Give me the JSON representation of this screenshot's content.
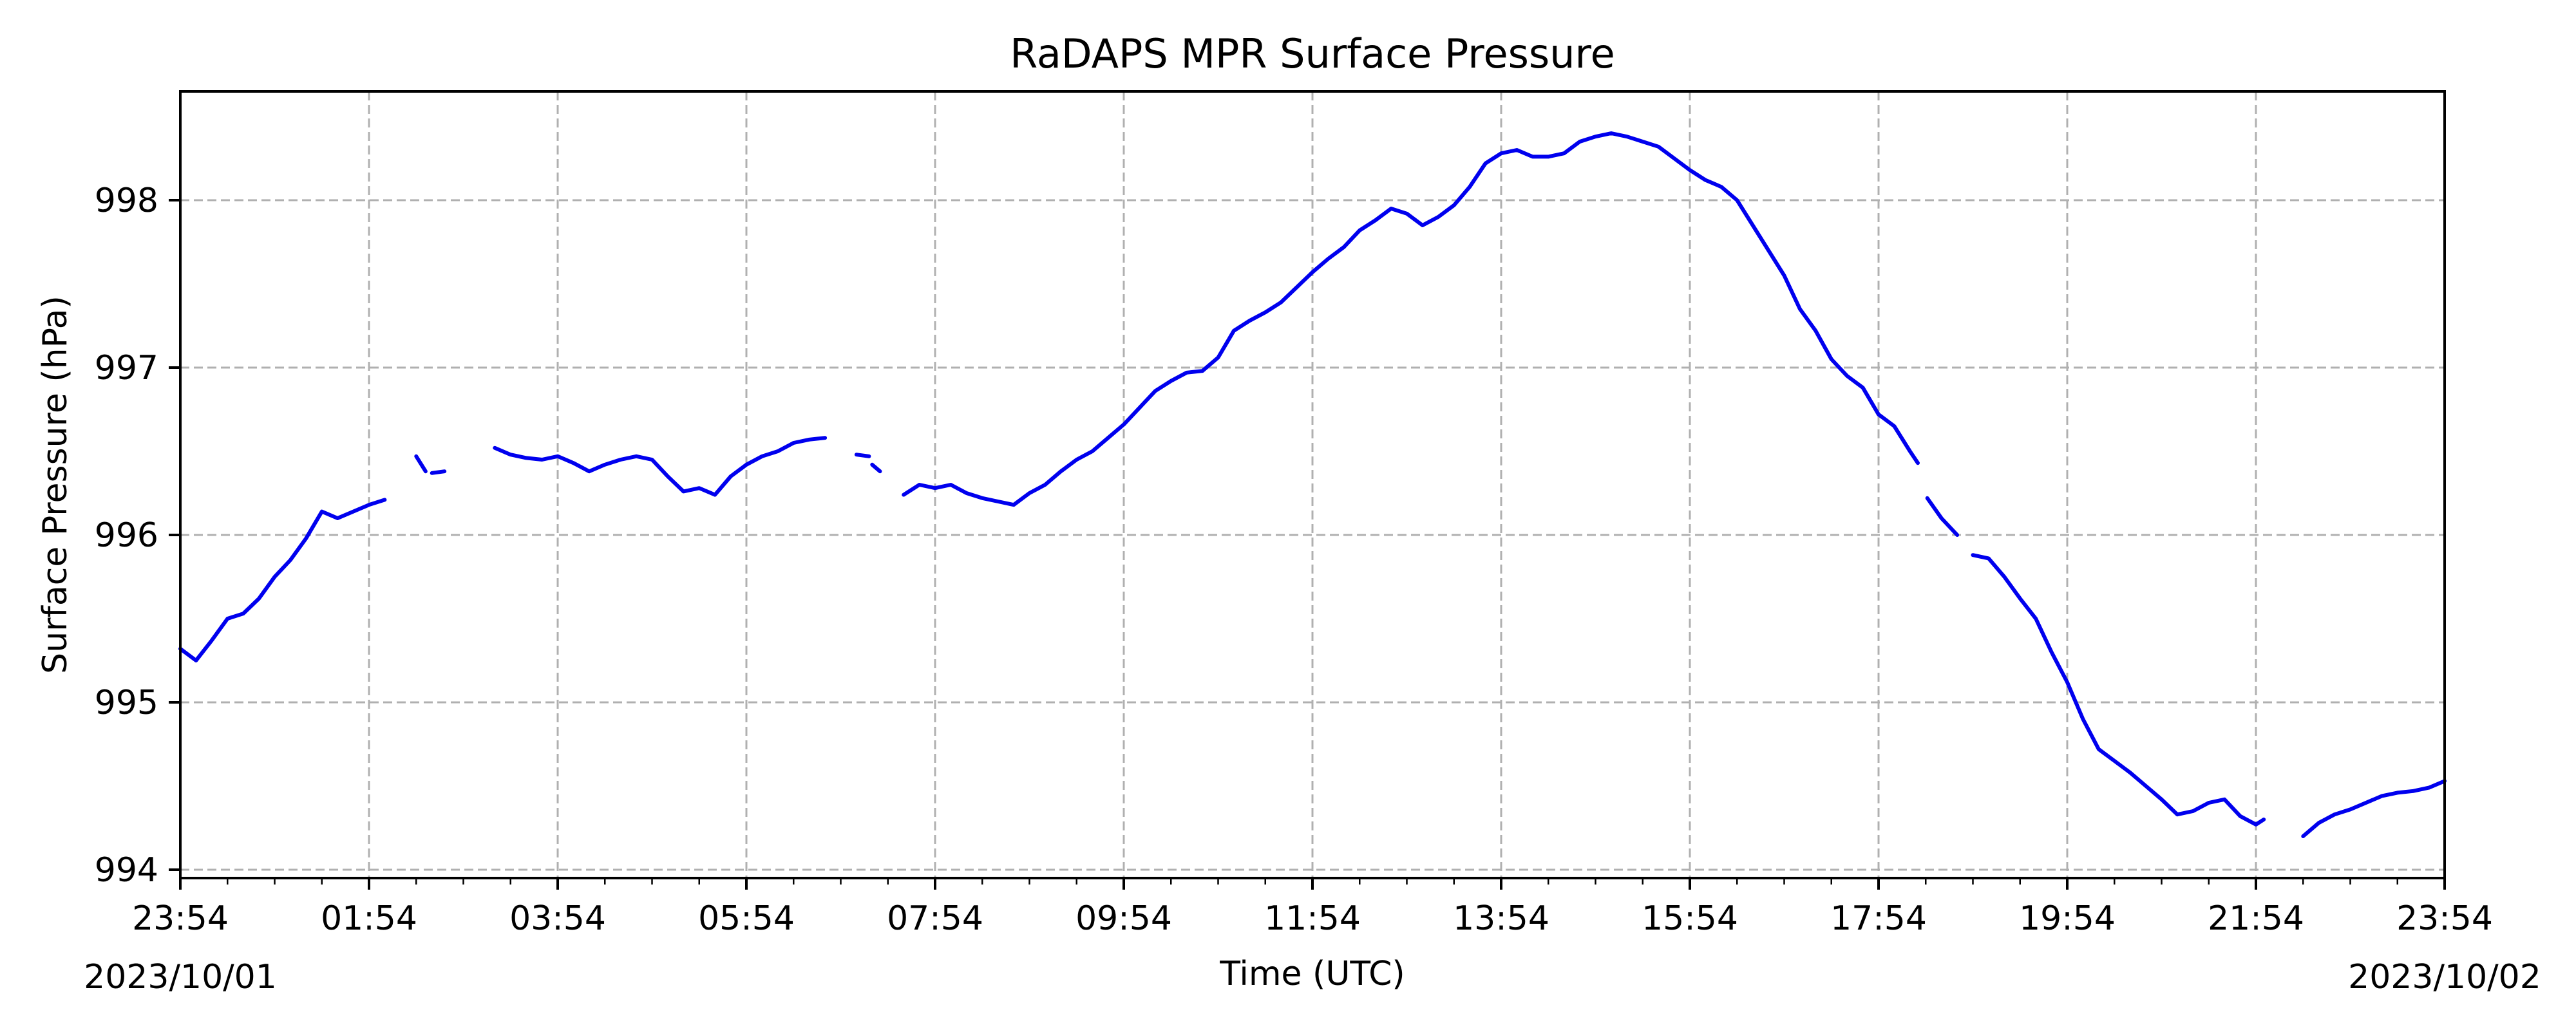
{
  "chart_data": {
    "type": "line",
    "title": "RaDAPS MPR Surface Pressure",
    "xlabel": "Time (UTC)",
    "ylabel": "Surface Pressure (hPa)",
    "x_unit": "hours (UTC)",
    "xlim": [
      "2023-10-01 23:54",
      "2023-10-02 23:54"
    ],
    "x_tick_labels": [
      "23:54",
      "01:54",
      "03:54",
      "05:54",
      "07:54",
      "09:54",
      "11:54",
      "13:54",
      "15:54",
      "17:54",
      "19:54",
      "21:54",
      "23:54"
    ],
    "x_date_labels": {
      "start": "2023/10/01",
      "end": "2023/10/02"
    },
    "ylim": [
      993.95,
      998.65
    ],
    "y_ticks": [
      994,
      995,
      996,
      997,
      998
    ],
    "grid": true,
    "series": [
      {
        "color": "#0000ee",
        "segments": [
          [
            [
              "2023-10-01 23:54",
              995.32
            ],
            [
              "2023-10-02 00:04",
              995.25
            ],
            [
              "2023-10-02 00:14",
              995.37
            ],
            [
              "2023-10-02 00:24",
              995.5
            ],
            [
              "2023-10-02 00:34",
              995.53
            ],
            [
              "2023-10-02 00:44",
              995.62
            ],
            [
              "2023-10-02 00:54",
              995.75
            ],
            [
              "2023-10-02 01:04",
              995.85
            ],
            [
              "2023-10-02 01:14",
              995.98
            ],
            [
              "2023-10-02 01:24",
              996.14
            ],
            [
              "2023-10-02 01:34",
              996.1
            ],
            [
              "2023-10-02 01:44",
              996.14
            ],
            [
              "2023-10-02 01:54",
              996.18
            ],
            [
              "2023-10-02 02:04",
              996.21
            ]
          ],
          [
            [
              "2023-10-02 02:24",
              996.47
            ],
            [
              "2023-10-02 02:30",
              996.38
            ]
          ],
          [
            [
              "2023-10-02 02:34",
              996.37
            ],
            [
              "2023-10-02 02:42",
              996.38
            ]
          ],
          [
            [
              "2023-10-02 03:14",
              996.52
            ],
            [
              "2023-10-02 03:24",
              996.48
            ],
            [
              "2023-10-02 03:34",
              996.46
            ],
            [
              "2023-10-02 03:44",
              996.45
            ],
            [
              "2023-10-02 03:54",
              996.47
            ],
            [
              "2023-10-02 04:04",
              996.43
            ],
            [
              "2023-10-02 04:14",
              996.38
            ],
            [
              "2023-10-02 04:24",
              996.42
            ],
            [
              "2023-10-02 04:34",
              996.45
            ],
            [
              "2023-10-02 04:44",
              996.47
            ],
            [
              "2023-10-02 04:54",
              996.45
            ],
            [
              "2023-10-02 05:04",
              996.35
            ],
            [
              "2023-10-02 05:14",
              996.26
            ],
            [
              "2023-10-02 05:24",
              996.28
            ],
            [
              "2023-10-02 05:34",
              996.24
            ],
            [
              "2023-10-02 05:44",
              996.35
            ],
            [
              "2023-10-02 05:54",
              996.42
            ],
            [
              "2023-10-02 06:04",
              996.47
            ],
            [
              "2023-10-02 06:14",
              996.5
            ],
            [
              "2023-10-02 06:24",
              996.55
            ],
            [
              "2023-10-02 06:34",
              996.57
            ],
            [
              "2023-10-02 06:44",
              996.58
            ]
          ],
          [
            [
              "2023-10-02 07:04",
              996.48
            ],
            [
              "2023-10-02 07:12",
              996.47
            ]
          ],
          [
            [
              "2023-10-02 07:14",
              996.42
            ],
            [
              "2023-10-02 07:19",
              996.38
            ]
          ],
          [
            [
              "2023-10-02 07:34",
              996.24
            ],
            [
              "2023-10-02 07:44",
              996.3
            ],
            [
              "2023-10-02 07:54",
              996.28
            ],
            [
              "2023-10-02 08:04",
              996.3
            ],
            [
              "2023-10-02 08:14",
              996.25
            ],
            [
              "2023-10-02 08:24",
              996.22
            ],
            [
              "2023-10-02 08:34",
              996.2
            ],
            [
              "2023-10-02 08:44",
              996.18
            ],
            [
              "2023-10-02 08:54",
              996.25
            ],
            [
              "2023-10-02 09:04",
              996.3
            ],
            [
              "2023-10-02 09:14",
              996.38
            ],
            [
              "2023-10-02 09:24",
              996.45
            ],
            [
              "2023-10-02 09:34",
              996.5
            ],
            [
              "2023-10-02 09:44",
              996.58
            ],
            [
              "2023-10-02 09:54",
              996.66
            ],
            [
              "2023-10-02 10:04",
              996.76
            ],
            [
              "2023-10-02 10:14",
              996.86
            ],
            [
              "2023-10-02 10:24",
              996.92
            ],
            [
              "2023-10-02 10:34",
              996.97
            ],
            [
              "2023-10-02 10:44",
              996.98
            ],
            [
              "2023-10-02 10:54",
              997.06
            ],
            [
              "2023-10-02 11:04",
              997.22
            ],
            [
              "2023-10-02 11:14",
              997.28
            ],
            [
              "2023-10-02 11:24",
              997.33
            ],
            [
              "2023-10-02 11:34",
              997.39
            ],
            [
              "2023-10-02 11:44",
              997.48
            ],
            [
              "2023-10-02 11:54",
              997.57
            ],
            [
              "2023-10-02 12:04",
              997.65
            ],
            [
              "2023-10-02 12:14",
              997.72
            ],
            [
              "2023-10-02 12:24",
              997.82
            ],
            [
              "2023-10-02 12:34",
              997.88
            ],
            [
              "2023-10-02 12:44",
              997.95
            ],
            [
              "2023-10-02 12:54",
              997.92
            ],
            [
              "2023-10-02 13:04",
              997.85
            ],
            [
              "2023-10-02 13:14",
              997.9
            ],
            [
              "2023-10-02 13:24",
              997.97
            ],
            [
              "2023-10-02 13:34",
              998.08
            ],
            [
              "2023-10-02 13:44",
              998.22
            ],
            [
              "2023-10-02 13:54",
              998.28
            ],
            [
              "2023-10-02 14:04",
              998.3
            ],
            [
              "2023-10-02 14:14",
              998.26
            ],
            [
              "2023-10-02 14:24",
              998.26
            ],
            [
              "2023-10-02 14:34",
              998.28
            ],
            [
              "2023-10-02 14:44",
              998.35
            ],
            [
              "2023-10-02 14:54",
              998.38
            ],
            [
              "2023-10-02 15:04",
              998.4
            ],
            [
              "2023-10-02 15:14",
              998.38
            ],
            [
              "2023-10-02 15:24",
              998.35
            ],
            [
              "2023-10-02 15:34",
              998.32
            ],
            [
              "2023-10-02 15:44",
              998.25
            ],
            [
              "2023-10-02 15:54",
              998.18
            ],
            [
              "2023-10-02 16:04",
              998.12
            ],
            [
              "2023-10-02 16:14",
              998.08
            ],
            [
              "2023-10-02 16:24",
              998.0
            ],
            [
              "2023-10-02 16:34",
              997.85
            ],
            [
              "2023-10-02 16:44",
              997.7
            ],
            [
              "2023-10-02 16:54",
              997.55
            ],
            [
              "2023-10-02 17:04",
              997.35
            ],
            [
              "2023-10-02 17:14",
              997.22
            ],
            [
              "2023-10-02 17:24",
              997.05
            ],
            [
              "2023-10-02 17:34",
              996.95
            ],
            [
              "2023-10-02 17:44",
              996.88
            ],
            [
              "2023-10-02 17:54",
              996.72
            ],
            [
              "2023-10-02 18:04",
              996.65
            ],
            [
              "2023-10-02 18:14",
              996.5
            ],
            [
              "2023-10-02 18:19",
              996.43
            ]
          ],
          [
            [
              "2023-10-02 18:25",
              996.22
            ],
            [
              "2023-10-02 18:34",
              996.1
            ],
            [
              "2023-10-02 18:44",
              996.0
            ]
          ],
          [
            [
              "2023-10-02 18:54",
              995.88
            ],
            [
              "2023-10-02 19:04",
              995.86
            ],
            [
              "2023-10-02 19:14",
              995.75
            ],
            [
              "2023-10-02 19:24",
              995.62
            ],
            [
              "2023-10-02 19:34",
              995.5
            ],
            [
              "2023-10-02 19:44",
              995.3
            ],
            [
              "2023-10-02 19:54",
              995.12
            ],
            [
              "2023-10-02 20:04",
              994.9
            ],
            [
              "2023-10-02 20:14",
              994.72
            ],
            [
              "2023-10-02 20:24",
              994.65
            ],
            [
              "2023-10-02 20:34",
              994.58
            ],
            [
              "2023-10-02 20:44",
              994.5
            ],
            [
              "2023-10-02 20:54",
              994.42
            ],
            [
              "2023-10-02 21:04",
              994.33
            ],
            [
              "2023-10-02 21:14",
              994.35
            ],
            [
              "2023-10-02 21:24",
              994.4
            ],
            [
              "2023-10-02 21:34",
              994.42
            ],
            [
              "2023-10-02 21:44",
              994.32
            ],
            [
              "2023-10-02 21:54",
              994.27
            ],
            [
              "2023-10-02 21:59",
              994.3
            ]
          ],
          [
            [
              "2023-10-02 22:24",
              994.2
            ],
            [
              "2023-10-02 22:34",
              994.28
            ],
            [
              "2023-10-02 22:44",
              994.33
            ],
            [
              "2023-10-02 22:54",
              994.36
            ],
            [
              "2023-10-02 23:04",
              994.4
            ],
            [
              "2023-10-02 23:14",
              994.44
            ],
            [
              "2023-10-02 23:24",
              994.46
            ],
            [
              "2023-10-02 23:34",
              994.47
            ],
            [
              "2023-10-02 23:44",
              994.49
            ],
            [
              "2023-10-02 23:54",
              994.53
            ]
          ]
        ]
      }
    ]
  }
}
